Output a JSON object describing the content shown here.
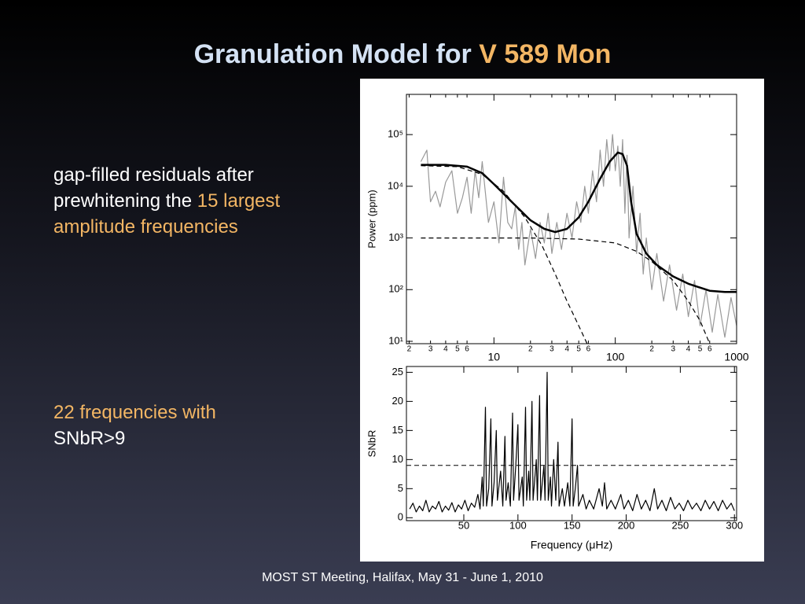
{
  "title": {
    "prefix": "Granulation Model for ",
    "highlight": "V 589 Mon"
  },
  "bullets": [
    {
      "plain": "gap-filled residuals after prewhitening the ",
      "highlight": "15 largest amplitude frequencies"
    },
    {
      "highlight": "22 frequencies with",
      "plain": "SNbR>9"
    }
  ],
  "footer": "MOST ST Meeting, Halifax, May 31 - June 1, 2010",
  "chart_data": [
    {
      "type": "line",
      "y_label": "Power (ppm)",
      "xlog": true,
      "ylog": true,
      "xlim": [
        1.9,
        1000
      ],
      "ylim": [
        9,
        600000
      ],
      "xticks": [
        2,
        3,
        4,
        5,
        6,
        10,
        {
          "value": 20,
          "label": "2"
        },
        {
          "value": 30,
          "label": "3"
        },
        {
          "value": 40,
          "label": "4"
        },
        {
          "value": 50,
          "label": "5"
        },
        {
          "value": 60,
          "label": "6"
        },
        100,
        {
          "value": 200,
          "label": "2"
        },
        {
          "value": 300,
          "label": "3"
        },
        {
          "value": 400,
          "label": "4"
        },
        {
          "value": 500,
          "label": "5"
        },
        {
          "value": 600,
          "label": "6"
        },
        1000
      ],
      "yticks": [
        {
          "value": 10,
          "label": "10¹"
        },
        {
          "value": 100,
          "label": "10²"
        },
        {
          "value": 1000,
          "label": "10³"
        },
        {
          "value": 10000,
          "label": "10⁴"
        },
        {
          "value": 100000,
          "label": "10⁵"
        }
      ],
      "series": [
        {
          "color": "#999999",
          "dash": false,
          "width": 1.2,
          "x": [
            2.5,
            2.8,
            3,
            3.3,
            3.6,
            4,
            4.5,
            5,
            5.5,
            6,
            6.5,
            7,
            7.5,
            8,
            9,
            10,
            11,
            12,
            13,
            14,
            15,
            16,
            17,
            18,
            20,
            22,
            24,
            26,
            28,
            30,
            33,
            36,
            40,
            44,
            48,
            52,
            56,
            60,
            65,
            70,
            75,
            80,
            85,
            90,
            95,
            100,
            105,
            110,
            115,
            120,
            125,
            130,
            140,
            150,
            160,
            170,
            180,
            200,
            220,
            250,
            280,
            320,
            360,
            400,
            450,
            500,
            560,
            630,
            700,
            800,
            900,
            1000
          ],
          "values": [
            30000,
            50000,
            5000,
            8000,
            4000,
            12000,
            20000,
            3000,
            6000,
            15000,
            3000,
            20000,
            6000,
            30000,
            2000,
            5000,
            800,
            15000,
            2000,
            1500,
            4000,
            600,
            2000,
            300,
            1500,
            400,
            2000,
            800,
            3000,
            500,
            2000,
            600,
            3000,
            1000,
            5000,
            2000,
            10000,
            3000,
            20000,
            5000,
            50000,
            10000,
            80000,
            20000,
            100000,
            20000,
            60000,
            10000,
            80000,
            3000,
            40000,
            1000,
            10000,
            500,
            3000,
            200,
            1000,
            100,
            500,
            60,
            300,
            40,
            200,
            30,
            150,
            20,
            100,
            15,
            80,
            12,
            70,
            20
          ]
        },
        {
          "color": "#000000",
          "dash": false,
          "width": 2.5,
          "x": [
            2.5,
            4,
            6,
            8,
            10,
            14,
            20,
            26,
            32,
            40,
            50,
            60,
            75,
            90,
            105,
            115,
            125,
            135,
            150,
            180,
            220,
            300,
            400,
            600,
            800,
            1000
          ],
          "values": [
            26000,
            26000,
            24000,
            18000,
            11000,
            5000,
            2200,
            1500,
            1300,
            1500,
            2500,
            5000,
            14000,
            30000,
            45000,
            42000,
            25000,
            5000,
            1200,
            500,
            300,
            180,
            130,
            95,
            90,
            90
          ]
        },
        {
          "color": "#000000",
          "dash": true,
          "width": 1.2,
          "x": [
            2.5,
            5,
            8,
            12,
            18,
            25,
            32,
            40,
            50,
            60
          ],
          "values": [
            25000,
            24000,
            17000,
            8000,
            2500,
            700,
            200,
            60,
            20,
            8
          ]
        },
        {
          "color": "#000000",
          "dash": true,
          "width": 1.2,
          "x": [
            2.5,
            20,
            50,
            100,
            150,
            200,
            300,
            400,
            500,
            600
          ],
          "values": [
            1000,
            1000,
            950,
            800,
            550,
            350,
            150,
            60,
            25,
            9
          ]
        }
      ]
    },
    {
      "type": "line",
      "y_label": "SNbR",
      "x_label": "Frequency (μHz)",
      "xlog": false,
      "ylog": false,
      "xlim": [
        -3,
        302
      ],
      "ylim": [
        -0.5,
        26
      ],
      "threshold": 9,
      "xticks": [
        50,
        100,
        150,
        200,
        250,
        300
      ],
      "yticks": [
        0,
        5,
        10,
        15,
        20,
        25
      ],
      "series": [
        {
          "color": "#000000",
          "dash": false,
          "width": 1.2,
          "x": [
            0,
            3,
            6,
            9,
            12,
            15,
            18,
            21,
            24,
            27,
            30,
            33,
            36,
            39,
            42,
            45,
            48,
            51,
            54,
            57,
            60,
            63,
            65,
            67,
            68,
            70,
            71,
            73,
            75,
            76,
            78,
            80,
            81,
            84,
            86,
            88,
            89,
            91,
            93,
            95,
            96,
            98,
            100,
            101,
            104,
            105,
            107,
            108,
            110,
            111,
            113,
            114,
            117,
            118,
            120,
            121,
            124,
            125,
            127,
            128,
            130,
            131,
            133,
            135,
            137,
            138,
            141,
            143,
            146,
            148,
            150,
            151,
            153,
            155,
            156,
            160,
            163,
            166,
            170,
            175,
            178,
            180,
            182,
            186,
            190,
            195,
            198,
            202,
            206,
            210,
            214,
            218,
            222,
            226,
            229,
            233,
            237,
            241,
            245,
            249,
            253,
            257,
            261,
            265,
            269,
            273,
            277,
            281,
            285,
            289,
            293,
            297,
            300
          ],
          "values": [
            1.5,
            2.5,
            1,
            2,
            1.2,
            3,
            1,
            2,
            1.5,
            2.8,
            1,
            2,
            1.3,
            2.6,
            1,
            2.2,
            1.5,
            3,
            1.2,
            2.5,
            1.8,
            4,
            1.5,
            7,
            2,
            19,
            2,
            5,
            17,
            2,
            6,
            15,
            3,
            8,
            2,
            14,
            3,
            6,
            2,
            18,
            3,
            9,
            16,
            3,
            7,
            2,
            19,
            3,
            8,
            3,
            20,
            3,
            10,
            3,
            21,
            3,
            9,
            3,
            25,
            3,
            7,
            2,
            10,
            3,
            13,
            2,
            5,
            2,
            6,
            2,
            17,
            2,
            5,
            9,
            2,
            4,
            1.5,
            3,
            1.5,
            5,
            2,
            6,
            1.5,
            3,
            1.5,
            4,
            1.5,
            3,
            1.2,
            4,
            1.5,
            3,
            1.2,
            5,
            1.5,
            3,
            1.2,
            3.5,
            1.5,
            2.5,
            1.2,
            3,
            1.5,
            2.5,
            1.2,
            3,
            1.5,
            2.8,
            1.2,
            3,
            1.5,
            2.5,
            1.2
          ]
        }
      ]
    }
  ]
}
